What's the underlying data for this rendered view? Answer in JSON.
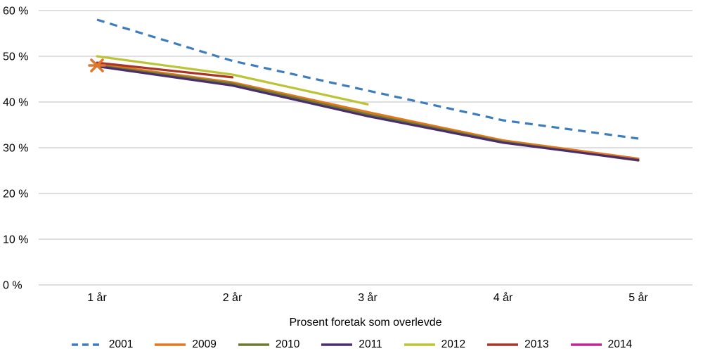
{
  "chart_data": {
    "type": "line",
    "title": "",
    "xlabel": "Prosent foretak som overlevde",
    "ylabel": "",
    "x_categories": [
      "1 år",
      "2 år",
      "3 år",
      "4 år",
      "5 år"
    ],
    "ylim": [
      0,
      60
    ],
    "ytick_step": 10,
    "ytick_labels": [
      "0 %",
      "10 %",
      "20 %",
      "30 %",
      "40 %",
      "50 %",
      "60 %"
    ],
    "grid": "horizontal",
    "legend_position": "bottom",
    "series": [
      {
        "name": "2001",
        "color": "#3e7dbd",
        "dash": true,
        "values": [
          58,
          49,
          42.5,
          36,
          32
        ]
      },
      {
        "name": "2009",
        "color": "#e2771f",
        "dash": false,
        "values": [
          48.3,
          44.3,
          37.8,
          31.6,
          27.6
        ]
      },
      {
        "name": "2010",
        "color": "#6b7a2f",
        "dash": false,
        "values": [
          48.0,
          44.0,
          37.3,
          31.3,
          27.2
        ]
      },
      {
        "name": "2011",
        "color": "#4b2c6f",
        "dash": false,
        "values": [
          47.8,
          43.6,
          36.9,
          31.1,
          27.3
        ]
      },
      {
        "name": "2012",
        "color": "#bcc436",
        "dash": false,
        "values": [
          50,
          46,
          39.5,
          null,
          null
        ]
      },
      {
        "name": "2013",
        "color": "#aa3526",
        "dash": false,
        "values": [
          48.6,
          45.4,
          null,
          null,
          null
        ]
      },
      {
        "name": "2014",
        "color": "#c02793",
        "dash": false,
        "marker": "asterisk",
        "marker_color": "#e0762c",
        "values": [
          48,
          null,
          null,
          null,
          null
        ]
      }
    ]
  }
}
